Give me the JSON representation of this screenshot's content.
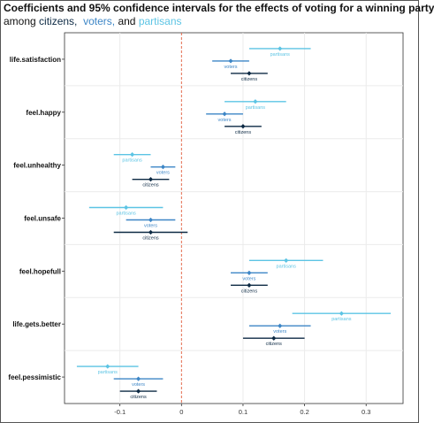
{
  "title": {
    "line1": "Coefficients and 95% confidence intervals for the effects of voting for a winning party",
    "prefix": "among",
    "citizens_word": "citizens,",
    "voters_word": "voters,",
    "and_word": "and",
    "partisans_word": "partisans"
  },
  "colors": {
    "citizens": "#0d2a44",
    "voters": "#3d86c6",
    "partisans": "#5cc4e4",
    "zero_line": "#e05a3a",
    "grid": "#ebebeb",
    "panel_border": "#333333"
  },
  "chart_data": {
    "type": "scatter",
    "title": "Coefficients and 95% confidence intervals for the effects of voting for a winning party among citizens, voters, and partisans",
    "xlabel": "",
    "ylabel": "",
    "xlim": [
      -0.19,
      0.36
    ],
    "x_ticks": [
      -0.1,
      0,
      0.1,
      0.2,
      0.3
    ],
    "x_tick_labels": [
      "-0.1",
      "0",
      "0.1",
      "0.2",
      "0.3"
    ],
    "reference_line": 0,
    "grid": true,
    "categories": [
      "life.satisfaction",
      "feel.happy",
      "feel.unhealthy",
      "feel.unsafe",
      "feel.hopefull",
      "life.gets.better",
      "feel.pessimistic"
    ],
    "series": [
      {
        "name": "partisans",
        "estimates": [
          0.16,
          0.12,
          -0.08,
          -0.09,
          0.17,
          0.26,
          -0.12
        ],
        "lower": [
          0.11,
          0.07,
          -0.11,
          -0.15,
          0.11,
          0.18,
          -0.17
        ],
        "upper": [
          0.21,
          0.17,
          -0.05,
          -0.03,
          0.23,
          0.34,
          -0.07
        ]
      },
      {
        "name": "voters",
        "estimates": [
          0.08,
          0.07,
          -0.03,
          -0.05,
          0.11,
          0.16,
          -0.07
        ],
        "lower": [
          0.05,
          0.04,
          -0.05,
          -0.09,
          0.08,
          0.11,
          -0.11
        ],
        "upper": [
          0.11,
          0.1,
          -0.01,
          -0.01,
          0.14,
          0.21,
          -0.03
        ]
      },
      {
        "name": "citizens",
        "estimates": [
          0.11,
          0.1,
          -0.05,
          -0.05,
          0.11,
          0.15,
          -0.07
        ],
        "lower": [
          0.08,
          0.07,
          -0.08,
          -0.11,
          0.08,
          0.1,
          -0.1
        ],
        "upper": [
          0.14,
          0.13,
          -0.02,
          0.01,
          0.14,
          0.2,
          -0.04
        ]
      }
    ]
  }
}
